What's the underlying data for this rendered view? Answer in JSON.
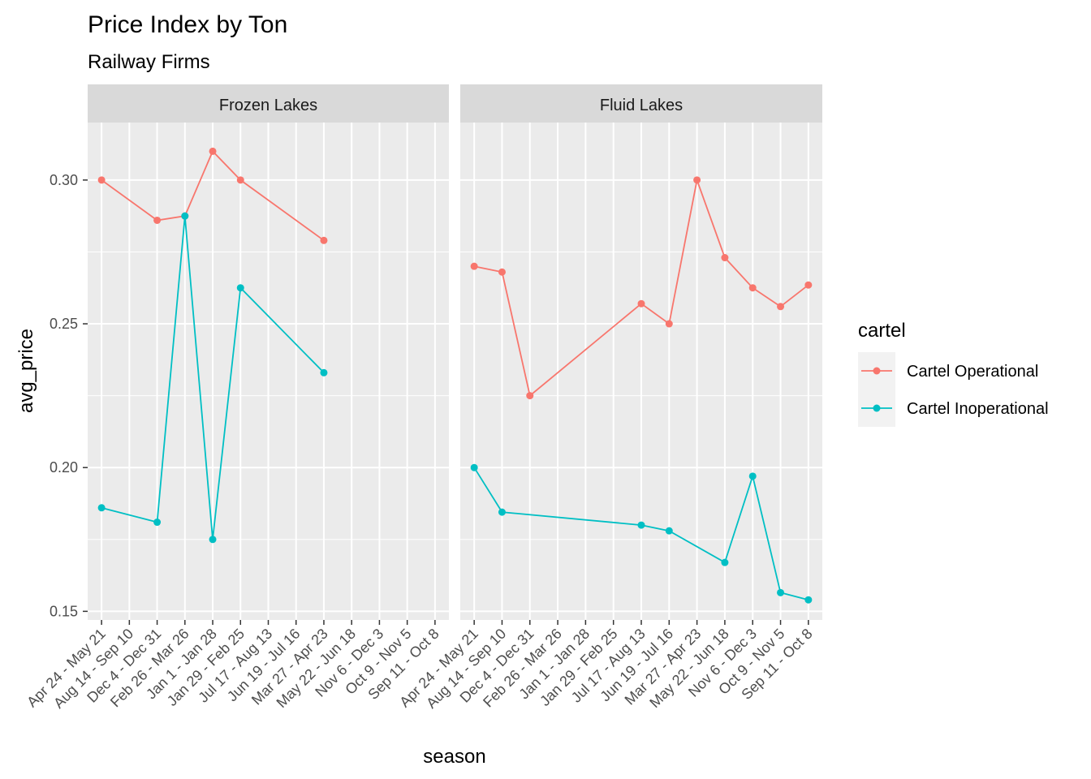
{
  "chart_data": {
    "type": "line",
    "title": "Price Index by Ton",
    "subtitle": "Railway Firms",
    "xlabel": "season",
    "ylabel": "avg_price",
    "ylim": [
      0.147,
      0.32
    ],
    "yticks": [
      0.15,
      0.2,
      0.25,
      0.3
    ],
    "ytick_labels": [
      "0.15",
      "0.20",
      "0.25",
      "0.30"
    ],
    "grid": true,
    "legend": {
      "title": "cartel",
      "position": "right"
    },
    "categories": [
      "Apr 24 - May 21",
      "Aug 14 - Sep 10",
      "Dec 4 - Dec 31",
      "Feb 26 - Mar 26",
      "Jan 1 - Jan 28",
      "Jan 29 - Feb 25",
      "Jul 17 - Aug 13",
      "Jun 19 - Jul 16",
      "Mar 27 - Apr 23",
      "May 22 - Jun 18",
      "Nov 6 - Dec 3",
      "Oct 9 - Nov 5",
      "Sep 11 - Oct 8"
    ],
    "series_meta": [
      {
        "name": "Cartel Operational",
        "color": "#F8766D"
      },
      {
        "name": "Cartel Inoperational",
        "color": "#00BFC4"
      }
    ],
    "panels": [
      {
        "label": "Frozen Lakes",
        "series": [
          {
            "name": "Cartel Operational",
            "points": [
              {
                "x": "Apr 24 - May 21",
                "y": 0.3
              },
              {
                "x": "Dec 4 - Dec 31",
                "y": 0.286
              },
              {
                "x": "Feb 26 - Mar 26",
                "y": 0.2875
              },
              {
                "x": "Jan 1 - Jan 28",
                "y": 0.31
              },
              {
                "x": "Jan 29 - Feb 25",
                "y": 0.3
              },
              {
                "x": "Mar 27 - Apr 23",
                "y": 0.279
              }
            ]
          },
          {
            "name": "Cartel Inoperational",
            "points": [
              {
                "x": "Apr 24 - May 21",
                "y": 0.186
              },
              {
                "x": "Dec 4 - Dec 31",
                "y": 0.181
              },
              {
                "x": "Feb 26 - Mar 26",
                "y": 0.2875
              },
              {
                "x": "Jan 1 - Jan 28",
                "y": 0.175
              },
              {
                "x": "Jan 29 - Feb 25",
                "y": 0.2625
              },
              {
                "x": "Mar 27 - Apr 23",
                "y": 0.233
              }
            ]
          }
        ]
      },
      {
        "label": "Fluid Lakes",
        "series": [
          {
            "name": "Cartel Operational",
            "points": [
              {
                "x": "Apr 24 - May 21",
                "y": 0.27
              },
              {
                "x": "Aug 14 - Sep 10",
                "y": 0.268
              },
              {
                "x": "Dec 4 - Dec 31",
                "y": 0.225
              },
              {
                "x": "Jul 17 - Aug 13",
                "y": 0.257
              },
              {
                "x": "Jun 19 - Jul 16",
                "y": 0.25
              },
              {
                "x": "Mar 27 - Apr 23",
                "y": 0.3
              },
              {
                "x": "May 22 - Jun 18",
                "y": 0.273
              },
              {
                "x": "Nov 6 - Dec 3",
                "y": 0.2625
              },
              {
                "x": "Oct 9 - Nov 5",
                "y": 0.256
              },
              {
                "x": "Sep 11 - Oct 8",
                "y": 0.2635
              }
            ]
          },
          {
            "name": "Cartel Inoperational",
            "points": [
              {
                "x": "Apr 24 - May 21",
                "y": 0.2
              },
              {
                "x": "Aug 14 - Sep 10",
                "y": 0.1845
              },
              {
                "x": "Jul 17 - Aug 13",
                "y": 0.18
              },
              {
                "x": "Jun 19 - Jul 16",
                "y": 0.178
              },
              {
                "x": "May 22 - Jun 18",
                "y": 0.167
              },
              {
                "x": "Nov 6 - Dec 3",
                "y": 0.197
              },
              {
                "x": "Oct 9 - Nov 5",
                "y": 0.1565
              },
              {
                "x": "Sep 11 - Oct 8",
                "y": 0.154
              }
            ]
          }
        ]
      }
    ]
  }
}
